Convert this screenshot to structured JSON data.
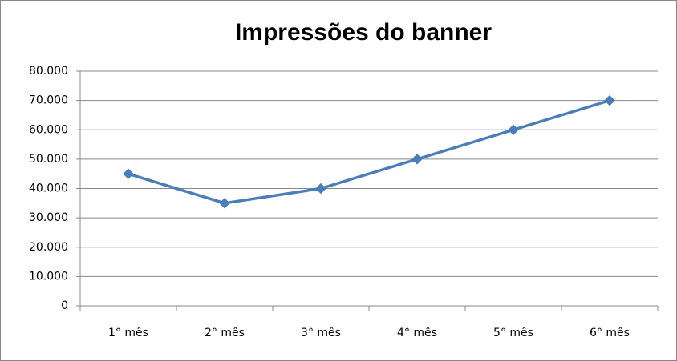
{
  "chart_data": {
    "type": "line",
    "title": "Impressões do banner",
    "categories": [
      "1° mês",
      "2° mês",
      "3° mês",
      "4° mês",
      "5° mês",
      "6° mês"
    ],
    "values": [
      45000,
      35000,
      40000,
      50000,
      60000,
      70000
    ],
    "color": "#4a7ebb",
    "ylim": [
      0,
      80000
    ],
    "yticks": [
      0,
      {
        "value": 10000,
        "label": "10.000"
      },
      {
        "value": 20000,
        "label": "20.000"
      },
      {
        "value": 30000,
        "label": "30.000"
      },
      {
        "value": 40000,
        "label": "40.000"
      },
      {
        "value": 50000,
        "label": "50.000"
      },
      {
        "value": 60000,
        "label": "60.000"
      },
      {
        "value": 70000,
        "label": "70.000"
      },
      {
        "value": 80000,
        "label": "80.000"
      }
    ],
    "grid": true,
    "marker": "diamond"
  }
}
